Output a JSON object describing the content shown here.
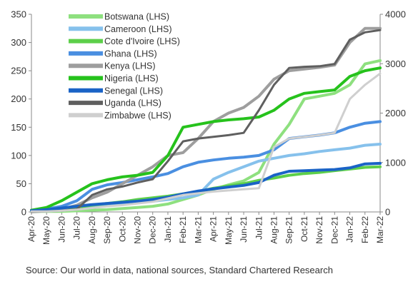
{
  "chart_data": {
    "type": "line",
    "x_categories": [
      "Apr-20",
      "May-20",
      "Jun-20",
      "Jul-20",
      "Aug-20",
      "Sep-20",
      "Oct-20",
      "Nov-20",
      "Dec-20",
      "Jan-21",
      "Feb-21",
      "Mar-21",
      "Apr-21",
      "May-21",
      "Jun-21",
      "Jul-21",
      "Aug-21",
      "Sep-21",
      "Oct-21",
      "Nov-21",
      "Dec-21",
      "Jan-22",
      "Feb-22",
      "Mar-22"
    ],
    "y_left": {
      "min": 0,
      "max": 350,
      "ticks": [
        0,
        50,
        100,
        150,
        200,
        250,
        300,
        350
      ]
    },
    "y_right": {
      "min": 0,
      "max": 4000,
      "ticks": [
        0,
        1000,
        2000,
        3000,
        4000
      ]
    },
    "legend_position": "top-left",
    "grid": false,
    "series": [
      {
        "name": "Botswana (LHS)",
        "color": "#8ee07f",
        "width": 4,
        "axis": "left",
        "values": [
          1,
          1,
          1,
          2,
          3,
          4,
          6,
          8,
          10,
          14,
          22,
          30,
          40,
          48,
          55,
          70,
          120,
          155,
          200,
          205,
          210,
          225,
          262,
          268
        ]
      },
      {
        "name": "Cameroon (LHS)",
        "color": "#86c1ec",
        "width": 4,
        "axis": "left",
        "values": [
          2,
          3,
          5,
          8,
          10,
          12,
          14,
          17,
          19,
          22,
          25,
          30,
          58,
          70,
          80,
          90,
          95,
          100,
          103,
          107,
          110,
          113,
          118,
          120
        ]
      },
      {
        "name": "Cote d'Ivoire (LHS)",
        "color": "#5dcf4a",
        "width": 4,
        "axis": "left",
        "values": [
          2,
          3,
          5,
          8,
          12,
          15,
          18,
          22,
          25,
          28,
          32,
          36,
          42,
          46,
          50,
          56,
          60,
          65,
          68,
          70,
          73,
          76,
          79,
          80
        ]
      },
      {
        "name": "Ghana (LHS)",
        "color": "#4a8fe1",
        "width": 4,
        "axis": "left",
        "values": [
          3,
          5,
          10,
          20,
          40,
          48,
          52,
          57,
          62,
          68,
          80,
          88,
          92,
          95,
          97,
          100,
          110,
          130,
          133,
          136,
          140,
          150,
          157,
          160
        ]
      },
      {
        "name": "Kenya (LHS)",
        "color": "#9e9e9e",
        "width": 4,
        "axis": "left",
        "values": [
          2,
          3,
          5,
          12,
          25,
          35,
          50,
          65,
          80,
          100,
          105,
          130,
          160,
          175,
          185,
          205,
          235,
          250,
          253,
          256,
          260,
          300,
          325,
          325
        ]
      },
      {
        "name": "Nigeria (LHS)",
        "color": "#26c21c",
        "width": 4,
        "axis": "left",
        "values": [
          3,
          8,
          20,
          35,
          50,
          57,
          62,
          65,
          70,
          100,
          150,
          155,
          160,
          163,
          165,
          168,
          180,
          200,
          210,
          213,
          216,
          240,
          250,
          255
        ]
      },
      {
        "name": "Senegal (LHS)",
        "color": "#1a63c6",
        "width": 4,
        "axis": "left",
        "values": [
          2,
          4,
          7,
          10,
          13,
          15,
          17,
          19,
          22,
          26,
          32,
          37,
          41,
          44,
          47,
          52,
          65,
          72,
          73,
          74,
          75,
          78,
          85,
          86
        ]
      },
      {
        "name": "Uganda (LHS)",
        "color": "#5f5f5f",
        "width": 3,
        "axis": "left",
        "values": [
          0,
          1,
          2,
          5,
          30,
          40,
          45,
          52,
          58,
          90,
          125,
          130,
          133,
          136,
          140,
          180,
          225,
          255,
          257,
          258,
          262,
          305,
          318,
          322
        ]
      },
      {
        "name": "Zimbabwe (LHS)",
        "color": "#cfcfcf",
        "width": 3,
        "axis": "left",
        "values": [
          1,
          1,
          2,
          4,
          7,
          10,
          12,
          15,
          18,
          24,
          30,
          33,
          36,
          38,
          40,
          42,
          115,
          130,
          133,
          136,
          140,
          200,
          225,
          245
        ]
      }
    ]
  },
  "source_note": "Source: Our world in data, national sources, Standard Chartered Research"
}
